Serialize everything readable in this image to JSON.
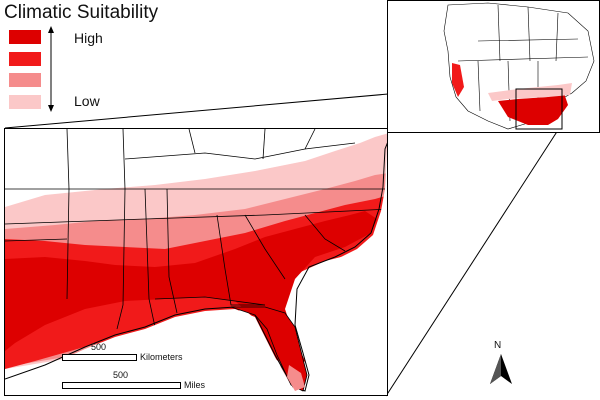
{
  "legend": {
    "title": "Climatic Suitability",
    "high_label": "High",
    "low_label": "Low",
    "classes": [
      "#dd0000",
      "#f11a1a",
      "#f58c8c",
      "#fbc8c8"
    ]
  },
  "scalebars": {
    "km_value": "500",
    "km_unit": "Kilometers",
    "mi_value": "500",
    "mi_unit": "Miles"
  },
  "north_arrow": {
    "label": "N"
  },
  "colors": {
    "high": "#dd0000",
    "mid_high": "#f11a1a",
    "mid_low": "#f58c8c",
    "low": "#fbc8c8",
    "border": "#000000"
  }
}
